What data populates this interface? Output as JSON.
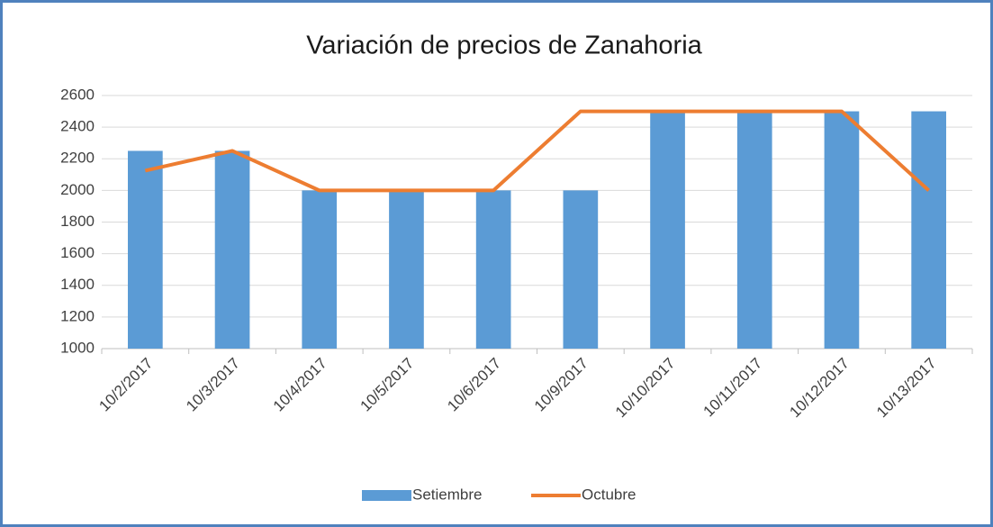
{
  "chart_data": {
    "type": "combo",
    "title": "Variación de precios de Zanahoria",
    "categories": [
      "10/2/2017",
      "10/3/2017",
      "10/4/2017",
      "10/5/2017",
      "10/6/2017",
      "10/9/2017",
      "10/10/2017",
      "10/11/2017",
      "10/12/2017",
      "10/13/2017"
    ],
    "series": [
      {
        "name": "Setiembre",
        "type": "bar",
        "color": "#5b9bd5",
        "values": [
          2250,
          2250,
          2000,
          2000,
          2000,
          2000,
          2500,
          2500,
          2500,
          2500
        ]
      },
      {
        "name": "Octubre",
        "type": "line",
        "color": "#ed7d31",
        "values": [
          2125,
          2250,
          2000,
          2000,
          2000,
          2500,
          2500,
          2500,
          2500,
          2000
        ]
      }
    ],
    "ylim": [
      1000,
      2600
    ],
    "yticks": [
      1000,
      1200,
      1400,
      1600,
      1800,
      2000,
      2200,
      2400,
      2600
    ],
    "grid": true,
    "legend": "bottom"
  }
}
